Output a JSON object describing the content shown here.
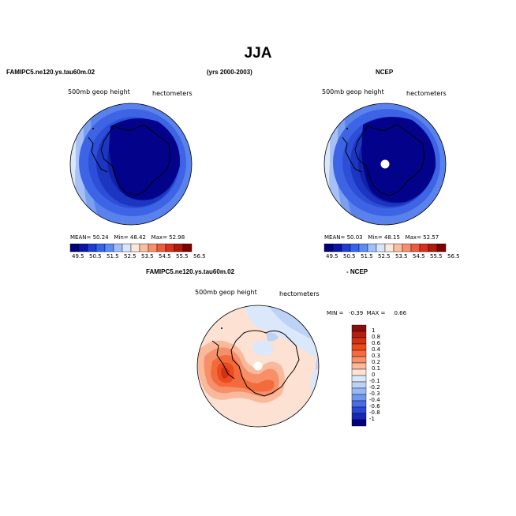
{
  "title": "JJA",
  "panels": [
    {
      "case_name": "FAMIPC5.ne120.ys.tau60m.02",
      "years": "(yrs 2000-2003)",
      "variable": "500mb geop height",
      "units": "hectometers",
      "mean_label": "MEAN=",
      "mean": "50.24",
      "min_label": "Min=",
      "min": "48.42",
      "max_label": "Max=",
      "max": "52.98"
    },
    {
      "case_name": "NCEP",
      "variable": "500mb geop height",
      "units": "hectometers",
      "mean_label": "MEAN=",
      "mean": "50.03",
      "min_label": "Min=",
      "min": "48.15",
      "max_label": "Max=",
      "max": "52.57"
    },
    {
      "case_name": "FAMIPC5.ne120.ys.tau60m.02",
      "case_suffix": "- NCEP",
      "variable": "500mb geop height",
      "units": "hectometers",
      "minmax": "MIN =   -0.39  MAX =     0.66"
    }
  ],
  "horizontal_colorbar": {
    "labels": [
      "49.5",
      "50.5",
      "51.5",
      "52.5",
      "53.5",
      "54.5",
      "55.5",
      "56.5"
    ],
    "colors": [
      "#00007f",
      "#0a14a6",
      "#1e3cd2",
      "#3264ee",
      "#5a8cf5",
      "#a0bef9",
      "#d8e6fd",
      "#fde6da",
      "#fbbd9f",
      "#f78f6b",
      "#ef5a3c",
      "#d7301c",
      "#b01a0c",
      "#7f0000"
    ]
  },
  "vertical_colorbar": {
    "labels": [
      "1",
      "0.8",
      "0.6",
      "0.4",
      "0.3",
      "0.2",
      "0.1",
      "0",
      "-0.1",
      "-0.2",
      "-0.3",
      "-0.4",
      "-0.6",
      "-0.8",
      "-1"
    ],
    "colors": [
      "#8c0d0d",
      "#b41e10",
      "#d23214",
      "#eb4b1e",
      "#f36b3c",
      "#f78f69",
      "#fbb99c",
      "#fde1d2",
      "#dbe8fb",
      "#bcd2f7",
      "#98b8f3",
      "#7096ee",
      "#4a6ce7",
      "#2b47d6",
      "#1628b4",
      "#00007f"
    ]
  }
}
